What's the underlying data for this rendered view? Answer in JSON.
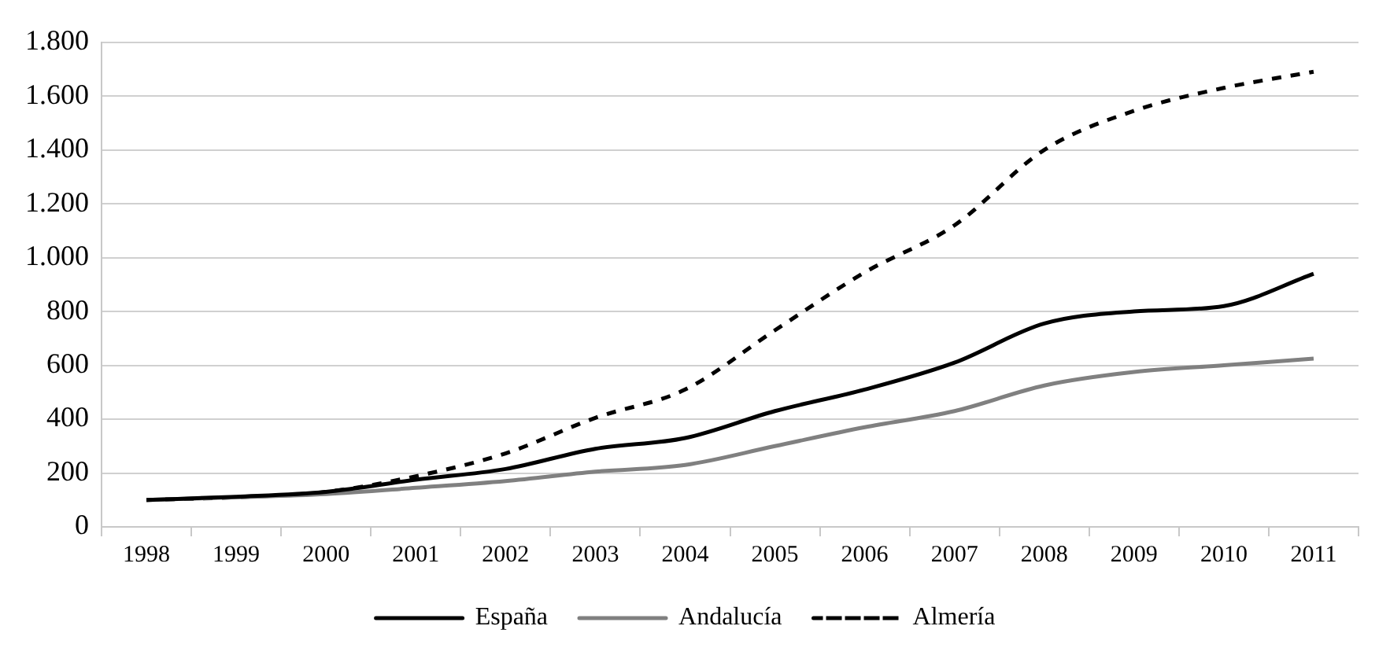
{
  "chart_data": {
    "type": "line",
    "categories": [
      "1998",
      "1999",
      "2000",
      "2001",
      "2002",
      "2003",
      "2004",
      "2005",
      "2006",
      "2007",
      "2008",
      "2009",
      "2010",
      "2011"
    ],
    "series": [
      {
        "name": "España",
        "color": "#000000",
        "line_style": "solid",
        "values": [
          100,
          112,
          130,
          175,
          215,
          290,
          330,
          430,
          510,
          610,
          755,
          800,
          820,
          940
        ]
      },
      {
        "name": "Andalucía",
        "color": "#808080",
        "line_style": "solid",
        "values": [
          100,
          110,
          122,
          145,
          170,
          205,
          230,
          300,
          370,
          430,
          525,
          575,
          600,
          625
        ]
      },
      {
        "name": "Almería",
        "color": "#000000",
        "line_style": "dashed",
        "values": [
          100,
          110,
          130,
          188,
          273,
          405,
          510,
          730,
          945,
          1120,
          1400,
          1545,
          1630,
          1690
        ]
      }
    ],
    "ylim": [
      0,
      1800
    ],
    "yticks": [
      0,
      200,
      400,
      600,
      800,
      {
        "value": 1000,
        "label": "1.000"
      },
      {
        "value": 1200,
        "label": "1.200"
      },
      {
        "value": 1400,
        "label": "1.400"
      },
      {
        "value": 1600,
        "label": "1.600"
      },
      {
        "value": 1800,
        "label": "1.800"
      }
    ],
    "grid": "y",
    "legend": "bottom",
    "marker": "none"
  }
}
